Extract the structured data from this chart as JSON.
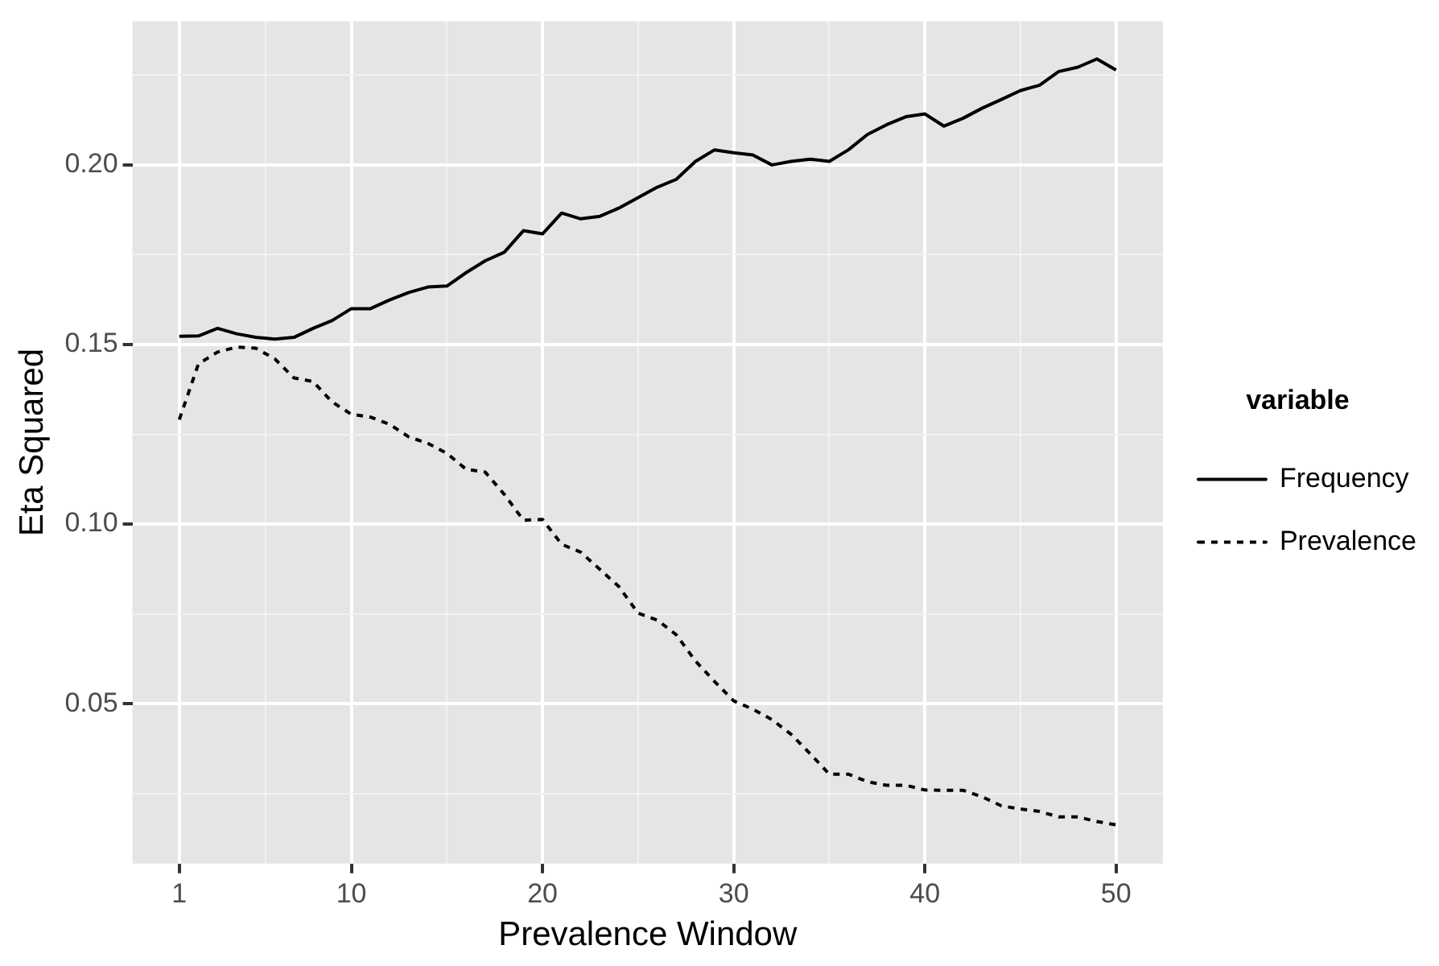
{
  "chart_data": {
    "type": "line",
    "xlabel": "Prevalence Window",
    "ylabel": "Eta Squared",
    "legend_title": "variable",
    "legend": "right",
    "grid": true,
    "marker": "none",
    "xlim": [
      -1.45,
      52.45
    ],
    "ylim": [
      0.0055,
      0.24
    ],
    "xticks": [
      1,
      {
        "value": 5.5,
        "label": null
      },
      10,
      {
        "value": 15,
        "label": null
      },
      20,
      {
        "value": 25,
        "label": null
      },
      30,
      {
        "value": 35,
        "label": null
      },
      40,
      {
        "value": 45,
        "label": null
      },
      50
    ],
    "yticks": [
      {
        "value": 0.025,
        "label": null
      },
      0.05,
      {
        "value": 0.075,
        "label": null
      },
      {
        "value": 0.1,
        "label": "0.10"
      },
      {
        "value": 0.125,
        "label": null
      },
      0.15,
      {
        "value": 0.175,
        "label": null
      },
      {
        "value": 0.2,
        "label": "0.20"
      },
      {
        "value": 0.225,
        "label": null
      }
    ],
    "x": [
      1,
      2,
      3,
      4,
      5,
      6,
      7,
      8,
      9,
      10,
      11,
      12,
      13,
      14,
      15,
      16,
      17,
      18,
      19,
      20,
      21,
      22,
      23,
      24,
      25,
      26,
      27,
      28,
      29,
      30,
      31,
      32,
      33,
      34,
      35,
      36,
      37,
      38,
      39,
      40,
      41,
      42,
      43,
      44,
      45,
      46,
      47,
      48,
      49,
      50
    ],
    "series": [
      {
        "name": "Frequency",
        "color": "#000000",
        "line_style": "solid",
        "values": [
          0.1523,
          0.1524,
          0.1545,
          0.153,
          0.152,
          0.1515,
          0.152,
          0.1545,
          0.1567,
          0.16,
          0.16,
          0.1624,
          0.1645,
          0.166,
          0.1663,
          0.17,
          0.1733,
          0.1757,
          0.1817,
          0.1808,
          0.1866,
          0.185,
          0.1857,
          0.188,
          0.1909,
          0.1938,
          0.196,
          0.201,
          0.2042,
          0.2034,
          0.2028,
          0.2,
          0.201,
          0.2016,
          0.201,
          0.2042,
          0.2085,
          0.2112,
          0.2134,
          0.2142,
          0.2108,
          0.213,
          0.2158,
          0.2182,
          0.2207,
          0.2222,
          0.226,
          0.2272,
          0.2295,
          0.2264
        ]
      },
      {
        "name": "Prevalence",
        "color": "#000000",
        "line_style": "dashed",
        "values": [
          0.1291,
          0.1446,
          0.1479,
          0.1493,
          0.149,
          0.146,
          0.1407,
          0.1397,
          0.134,
          0.1306,
          0.1298,
          0.1278,
          0.1243,
          0.1225,
          0.1197,
          0.1153,
          0.1145,
          0.1083,
          0.1011,
          0.1013,
          0.0944,
          0.0922,
          0.0874,
          0.0826,
          0.0752,
          0.0733,
          0.0692,
          0.0619,
          0.0562,
          0.0508,
          0.0485,
          0.0456,
          0.0415,
          0.0361,
          0.0304,
          0.0304,
          0.0283,
          0.0273,
          0.0273,
          0.026,
          0.0259,
          0.0259,
          0.0241,
          0.0216,
          0.0207,
          0.02,
          0.0185,
          0.0185,
          0.0172,
          0.0163
        ]
      }
    ]
  }
}
